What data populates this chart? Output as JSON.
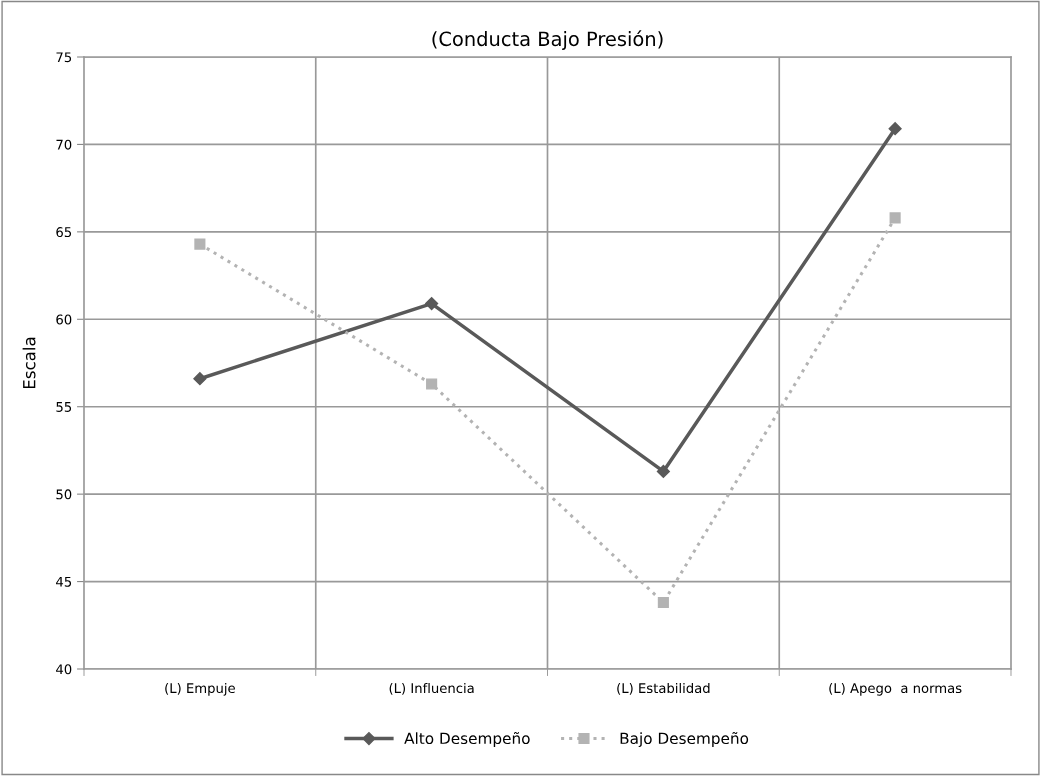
{
  "chart_data": {
    "type": "line",
    "title": "(Conducta Bajo Presión)",
    "ylabel": "Escala",
    "categories": [
      "(L) Empuje",
      "(L) Influencia",
      "(L) Estabilidad",
      "(L) Apego  a normas"
    ],
    "series": [
      {
        "name": "Alto Desempeño",
        "color": "#595959",
        "values": [
          56.6,
          60.9,
          51.3,
          70.9
        ],
        "marker": "diamond",
        "line_style": "solid"
      },
      {
        "name": "Bajo Desempeño",
        "color": "#b3b3b3",
        "values": [
          64.3,
          56.3,
          43.8,
          65.8
        ],
        "marker": "square",
        "line_style": "dotted"
      }
    ],
    "ylim": [
      40,
      75
    ],
    "yticks": [
      40,
      45,
      50,
      55,
      60,
      65,
      70,
      75
    ],
    "grid": true,
    "legend": "bottom"
  }
}
